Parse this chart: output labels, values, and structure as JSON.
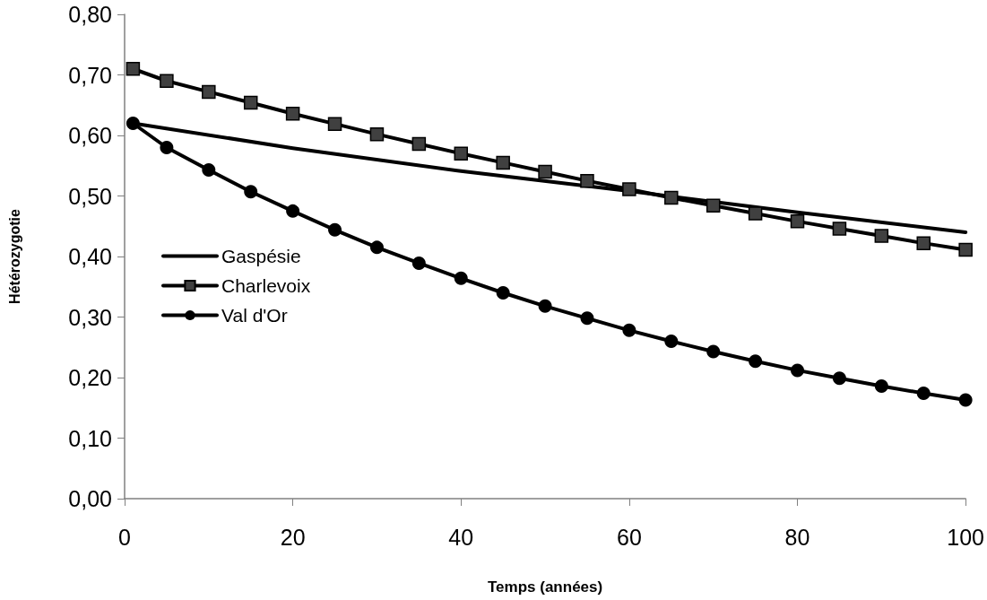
{
  "chart_data": {
    "type": "line",
    "xlabel": "Temps (années)",
    "ylabel": "Hétérozygotie",
    "xlim": [
      0,
      100
    ],
    "xticks": [
      0,
      20,
      40,
      60,
      80,
      100
    ],
    "ylim": [
      0,
      0.8
    ],
    "yticks": [
      {
        "value": 0,
        "label": "0,00"
      },
      {
        "value": 0.1,
        "label": "0,10"
      },
      {
        "value": 0.2,
        "label": "0,20"
      },
      {
        "value": 0.3,
        "label": "0,30"
      },
      {
        "value": 0.4,
        "label": "0,40"
      },
      {
        "value": 0.5,
        "label": "0,50"
      },
      {
        "value": 0.6,
        "label": "0,60"
      },
      {
        "value": 0.7,
        "label": "0,70"
      },
      {
        "value": 0.8,
        "label": "0,80"
      }
    ],
    "grid": false,
    "legend": "left",
    "line_style": "solid",
    "series": [
      {
        "name": "Gaspésie",
        "color": "#000000",
        "marker": "none",
        "x": [
          1,
          20,
          40,
          60,
          80,
          100
        ],
        "values": [
          0.62,
          0.579,
          0.541,
          0.508,
          0.473,
          0.44
        ]
      },
      {
        "name": "Charlevoix",
        "color": "#000000",
        "marker": "square",
        "x": [
          1,
          5,
          10,
          15,
          20,
          25,
          30,
          35,
          40,
          45,
          50,
          55,
          60,
          65,
          70,
          75,
          80,
          85,
          90,
          95,
          100
        ],
        "values": [
          0.71,
          0.69,
          0.672,
          0.654,
          0.636,
          0.619,
          0.602,
          0.586,
          0.57,
          0.555,
          0.54,
          0.525,
          0.511,
          0.497,
          0.484,
          0.471,
          0.458,
          0.446,
          0.434,
          0.422,
          0.411
        ]
      },
      {
        "name": "Val d'Or",
        "color": "#000000",
        "marker": "circle",
        "x": [
          1,
          5,
          10,
          15,
          20,
          25,
          30,
          35,
          40,
          45,
          50,
          55,
          60,
          65,
          70,
          75,
          80,
          85,
          90,
          95,
          100
        ],
        "values": [
          0.62,
          0.58,
          0.543,
          0.507,
          0.475,
          0.444,
          0.415,
          0.389,
          0.364,
          0.34,
          0.318,
          0.298,
          0.278,
          0.26,
          0.243,
          0.227,
          0.212,
          0.199,
          0.186,
          0.174,
          0.163
        ]
      }
    ]
  }
}
